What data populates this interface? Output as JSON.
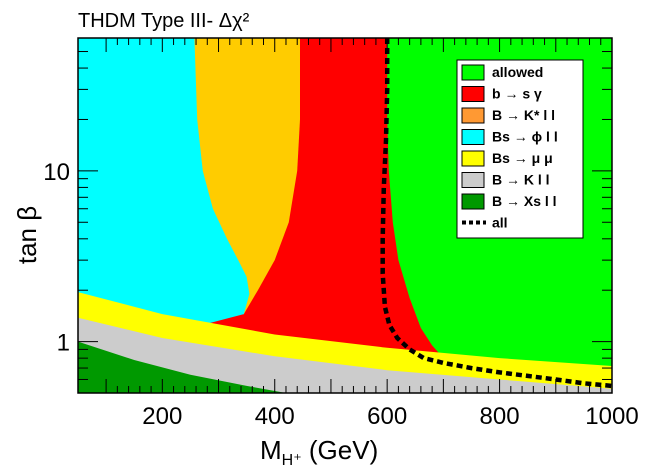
{
  "chart_data": {
    "type": "area",
    "title": "THDM Type III- Δχ²",
    "xlabel": "M_{H⁺} (GeV)",
    "xlabel_main": "M",
    "xlabel_sub": "H⁺",
    "xlabel_unit": " (GeV)",
    "ylabel": "tan β",
    "xlim": [
      50,
      1000
    ],
    "ylim": [
      0.5,
      60
    ],
    "yscale": "log",
    "x_ticks": [
      200,
      400,
      600,
      800,
      1000
    ],
    "y_ticks": [
      1,
      10
    ],
    "legend_position": "top-right",
    "background_color": "#00ff00",
    "regions": [
      {
        "name": "allowed",
        "label": "allowed",
        "color": "#00ff00"
      },
      {
        "name": "b-s-gamma",
        "label": "b → s γ",
        "color": "#ff0000",
        "boundary": [
          [
            600,
            60
          ],
          [
            600,
            20
          ],
          [
            603,
            10
          ],
          [
            610,
            5
          ],
          [
            620,
            3
          ],
          [
            640,
            1.8
          ],
          [
            660,
            1.2
          ],
          [
            680,
            0.95
          ],
          [
            700,
            0.8
          ],
          [
            780,
            0.7
          ],
          [
            900,
            0.62
          ],
          [
            1000,
            0.55
          ],
          [
            1000,
            0.5
          ],
          [
            50,
            0.5
          ],
          [
            50,
            60
          ]
        ]
      },
      {
        "name": "B-Kstar-ll",
        "label": "B → K* l l",
        "color": "#ffcc00",
        "boundary": [
          [
            445,
            60
          ],
          [
            445,
            20
          ],
          [
            440,
            10
          ],
          [
            425,
            5
          ],
          [
            400,
            3
          ],
          [
            370,
            2
          ],
          [
            345,
            1.45
          ],
          [
            50,
            1.45
          ],
          [
            50,
            60
          ]
        ]
      },
      {
        "name": "Bs-phi-ll",
        "label": "B_s → ϕ l l",
        "color": "#00ffff",
        "boundary": [
          [
            257,
            60
          ],
          [
            262,
            20
          ],
          [
            272,
            10
          ],
          [
            290,
            6
          ],
          [
            315,
            4
          ],
          [
            335,
            3
          ],
          [
            350,
            2.4
          ],
          [
            355,
            1.9
          ],
          [
            345,
            1.45
          ],
          [
            270,
            1.25
          ],
          [
            200,
            1.4
          ],
          [
            100,
            1.6
          ],
          [
            50,
            1.8
          ],
          [
            50,
            60
          ]
        ]
      },
      {
        "name": "Bs-mumu",
        "label": "B_s → μ μ",
        "color": "#ffff00",
        "boundary": [
          [
            50,
            1.95
          ],
          [
            200,
            1.45
          ],
          [
            400,
            1.1
          ],
          [
            600,
            0.92
          ],
          [
            800,
            0.8
          ],
          [
            1000,
            0.72
          ],
          [
            1000,
            0.5
          ],
          [
            50,
            0.5
          ]
        ]
      },
      {
        "name": "B-K-ll",
        "label": "B → K l l",
        "color": "#cccccc",
        "boundary": [
          [
            50,
            1.38
          ],
          [
            200,
            1.05
          ],
          [
            400,
            0.82
          ],
          [
            600,
            0.68
          ],
          [
            800,
            0.6
          ],
          [
            1000,
            0.53
          ],
          [
            1000,
            0.5
          ],
          [
            50,
            0.5
          ]
        ]
      },
      {
        "name": "B-Xs-ll",
        "label": "B → X_s l l",
        "color": "#009900",
        "boundary": [
          [
            50,
            1.0
          ],
          [
            150,
            0.78
          ],
          [
            250,
            0.64
          ],
          [
            350,
            0.55
          ],
          [
            420,
            0.5
          ],
          [
            50,
            0.5
          ]
        ]
      }
    ],
    "combined_boundary": {
      "name": "all",
      "label": "all",
      "style": "dashed",
      "x": [
        600,
        600,
        598,
        594,
        592,
        592,
        596,
        604,
        618,
        640,
        665,
        700,
        750,
        800,
        850,
        900,
        950,
        1000
      ],
      "y": [
        60,
        30,
        15,
        8,
        4,
        2.5,
        1.6,
        1.25,
        1.05,
        0.9,
        0.8,
        0.75,
        0.7,
        0.66,
        0.63,
        0.6,
        0.57,
        0.55
      ]
    },
    "legend": [
      {
        "label": "allowed",
        "color": "#00ff00",
        "style": "box"
      },
      {
        "label": "b  → s  γ",
        "color": "#ff0000",
        "style": "box"
      },
      {
        "label": "B  → K* l l",
        "color": "#ff9933",
        "style": "box"
      },
      {
        "label": "Bs  →  ϕ l l",
        "color": "#00ffff",
        "style": "box"
      },
      {
        "label": "Bs  →  μ  μ",
        "color": "#ffff00",
        "style": "box"
      },
      {
        "label": "B  → K l l",
        "color": "#cccccc",
        "style": "box"
      },
      {
        "label": "B  → Xs l l",
        "color": "#009900",
        "style": "box"
      },
      {
        "label": "all",
        "color": "#000000",
        "style": "dashed"
      }
    ]
  }
}
